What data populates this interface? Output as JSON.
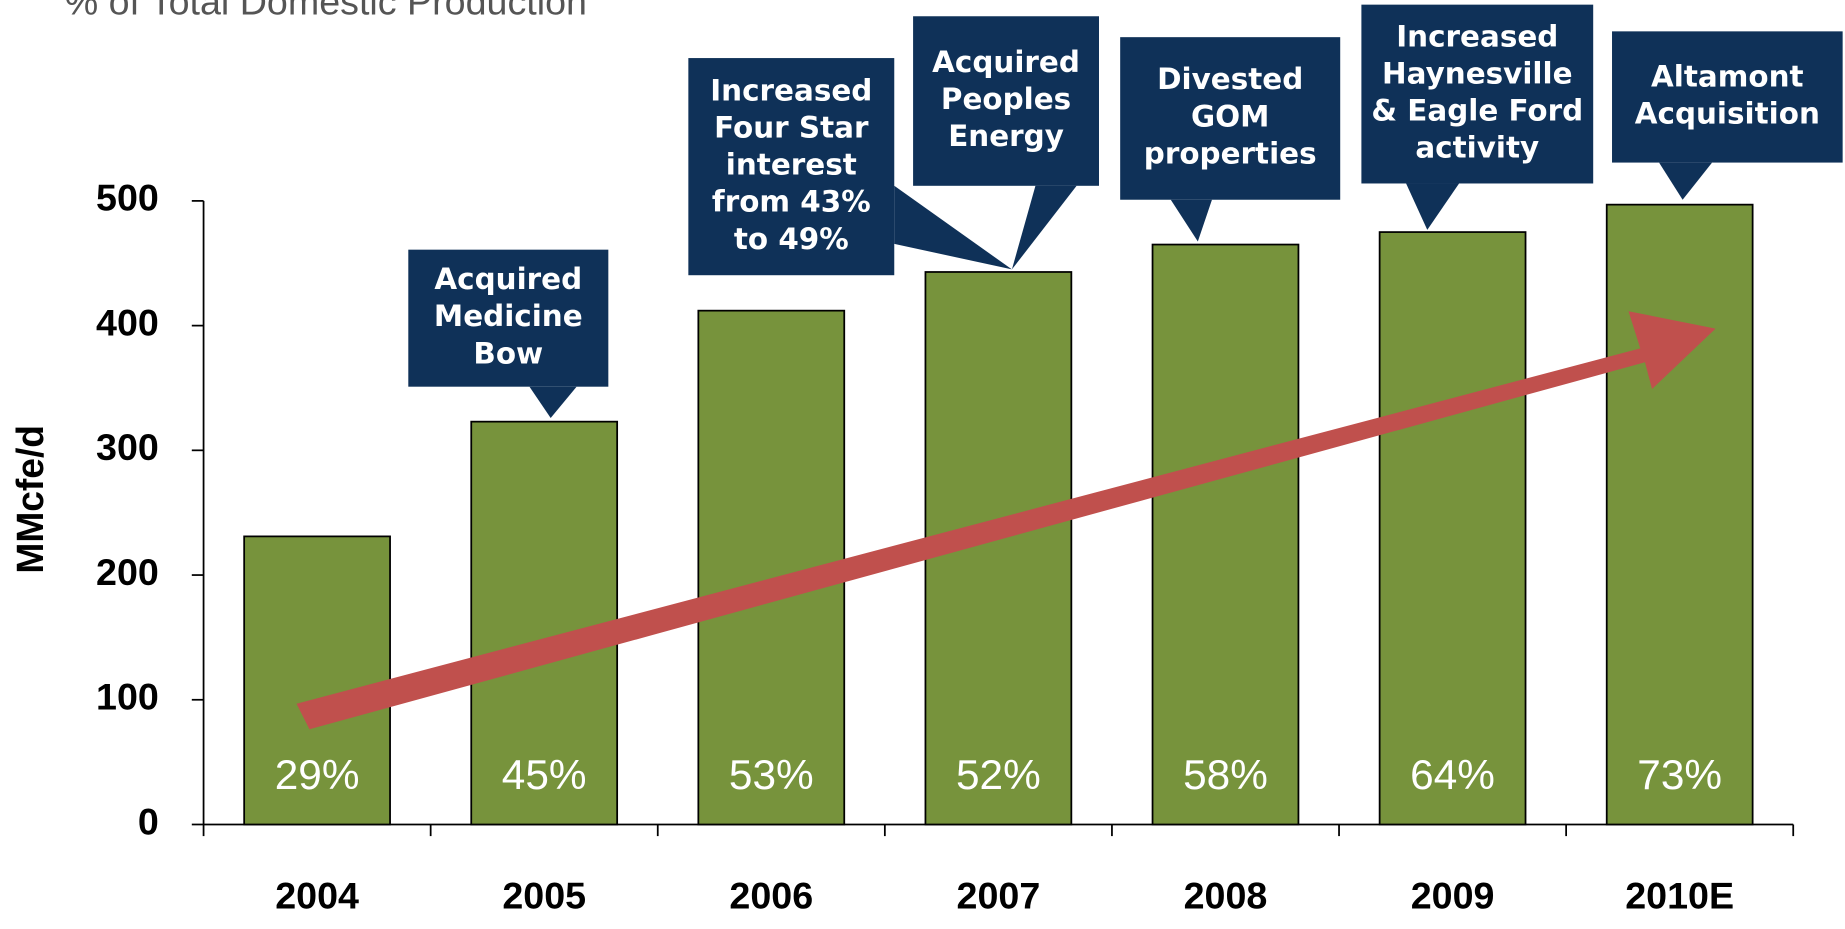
{
  "chart_data": {
    "type": "bar",
    "title": "% of Total Domestic Production",
    "y_label": "MMcfe/d",
    "categories": [
      "2004",
      "2005",
      "2006",
      "2007",
      "2008",
      "2009",
      "2010E"
    ],
    "values": [
      231,
      323,
      412,
      443,
      465,
      475,
      497
    ],
    "color": "#77933c",
    "ylim": [
      0,
      500
    ],
    "yticks": [
      0,
      100,
      200,
      300,
      400,
      500
    ],
    "grid": false,
    "share": {
      "values": [
        29,
        45,
        53,
        52,
        58,
        64,
        73
      ],
      "value_labels": [
        "29%",
        "45%",
        "53%",
        "52%",
        "58%",
        "64%",
        "73%"
      ]
    },
    "annotations": [
      {
        "text": "Acquired\nMedicine\nBow"
      },
      {
        "text": "Increased\nFour  Star\ninterest\nfrom 43%\nto 49%"
      },
      {
        "text": "Acquired\nPeoples\nEnergy"
      },
      {
        "text": "Divested\nGOM\nproperties"
      },
      {
        "text": "Increased\nHaynesville\n& Eagle Ford\nactivity"
      },
      {
        "text": "Altamont\nAcquisition"
      }
    ]
  }
}
